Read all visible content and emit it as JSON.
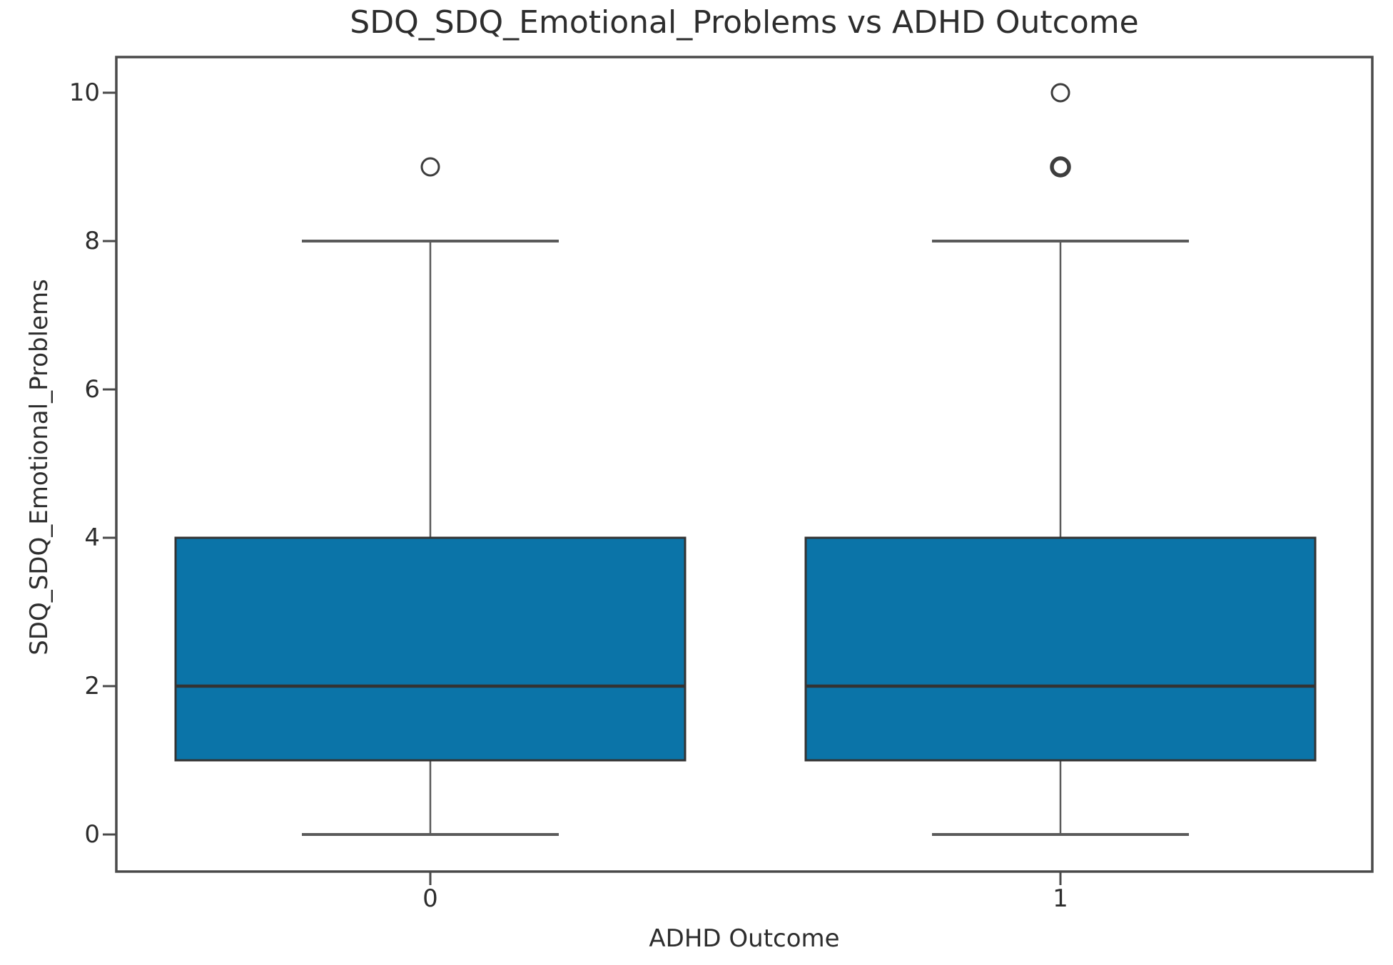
{
  "chart_data": {
    "type": "box",
    "title": "SDQ_SDQ_Emotional_Problems vs ADHD Outcome",
    "xlabel": "ADHD Outcome",
    "ylabel": "SDQ_SDQ_Emotional_Problems",
    "ylim": [
      -0.5,
      10.5
    ],
    "yticks": [
      0,
      2,
      4,
      6,
      8,
      10
    ],
    "ytick_labels": [
      "0",
      "2",
      "4",
      "6",
      "8",
      "10"
    ],
    "categories": [
      "0",
      "1"
    ],
    "grid": false,
    "legend": "none",
    "groups": [
      {
        "label": "0",
        "whisker_low": 0,
        "q1": 1,
        "median": 2,
        "q3": 4,
        "whisker_high": 8,
        "outliers": [
          9
        ]
      },
      {
        "label": "1",
        "whisker_low": 0,
        "q1": 1,
        "median": 2,
        "q3": 4,
        "whisker_high": 8,
        "outliers": [
          9,
          9,
          10
        ]
      }
    ],
    "colors": {
      "box_fill": "#0b74a8",
      "box_edge": "#333333",
      "median_line": "#333333",
      "whisker": "#5a5a5a",
      "cap": "#5a5a5a",
      "outlier_edge": "#3d3d3d",
      "axes_frame": "#4a4a4a",
      "text": "#2d2d2d"
    }
  }
}
